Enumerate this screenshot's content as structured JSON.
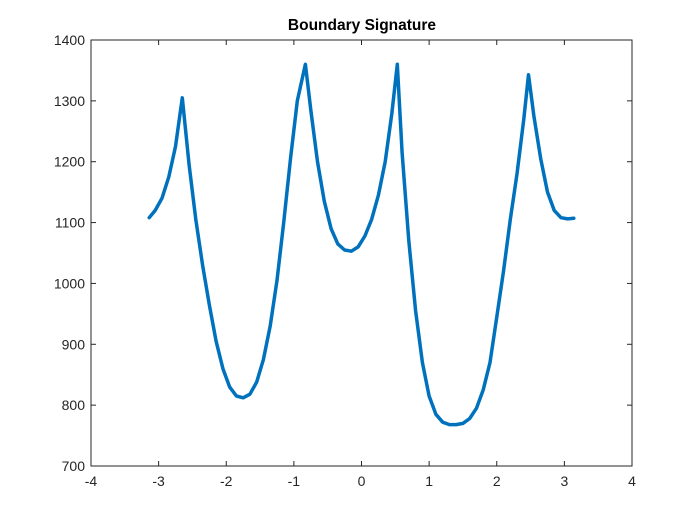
{
  "chart_data": {
    "type": "line",
    "title": "Boundary Signature",
    "xlabel": "",
    "ylabel": "",
    "xlim": [
      -4,
      4
    ],
    "ylim": [
      700,
      1400
    ],
    "xticks": [
      -4,
      -3,
      -2,
      -1,
      0,
      1,
      2,
      3,
      4
    ],
    "yticks": [
      700,
      800,
      900,
      1000,
      1100,
      1200,
      1300,
      1400
    ],
    "grid": false,
    "legend": "none",
    "line_color": "#0072BD",
    "axis_color": "#262626",
    "series": [
      {
        "x": [
          -3.14,
          -3.05,
          -2.95,
          -2.85,
          -2.75,
          -2.65,
          -2.55,
          -2.45,
          -2.35,
          -2.25,
          -2.15,
          -2.05,
          -1.95,
          -1.85,
          -1.75,
          -1.65,
          -1.55,
          -1.45,
          -1.35,
          -1.25,
          -1.15,
          -1.05,
          -0.95,
          -0.83,
          -0.75,
          -0.65,
          -0.55,
          -0.45,
          -0.35,
          -0.25,
          -0.15,
          -0.05,
          0.05,
          0.15,
          0.25,
          0.35,
          0.45,
          0.53,
          0.6,
          0.7,
          0.8,
          0.9,
          1.0,
          1.1,
          1.2,
          1.3,
          1.4,
          1.5,
          1.6,
          1.7,
          1.8,
          1.9,
          2.0,
          2.1,
          2.2,
          2.3,
          2.4,
          2.47,
          2.55,
          2.65,
          2.75,
          2.85,
          2.95,
          3.05,
          3.14
        ],
        "y": [
          1108,
          1120,
          1140,
          1175,
          1225,
          1305,
          1195,
          1105,
          1030,
          965,
          905,
          860,
          830,
          815,
          812,
          818,
          838,
          875,
          930,
          1005,
          1100,
          1205,
          1300,
          1360,
          1285,
          1200,
          1135,
          1090,
          1065,
          1055,
          1053,
          1060,
          1078,
          1105,
          1145,
          1200,
          1280,
          1360,
          1215,
          1070,
          955,
          870,
          815,
          785,
          772,
          768,
          768,
          770,
          778,
          795,
          825,
          870,
          945,
          1020,
          1105,
          1180,
          1270,
          1343,
          1275,
          1205,
          1150,
          1120,
          1108,
          1106,
          1107
        ]
      }
    ]
  }
}
